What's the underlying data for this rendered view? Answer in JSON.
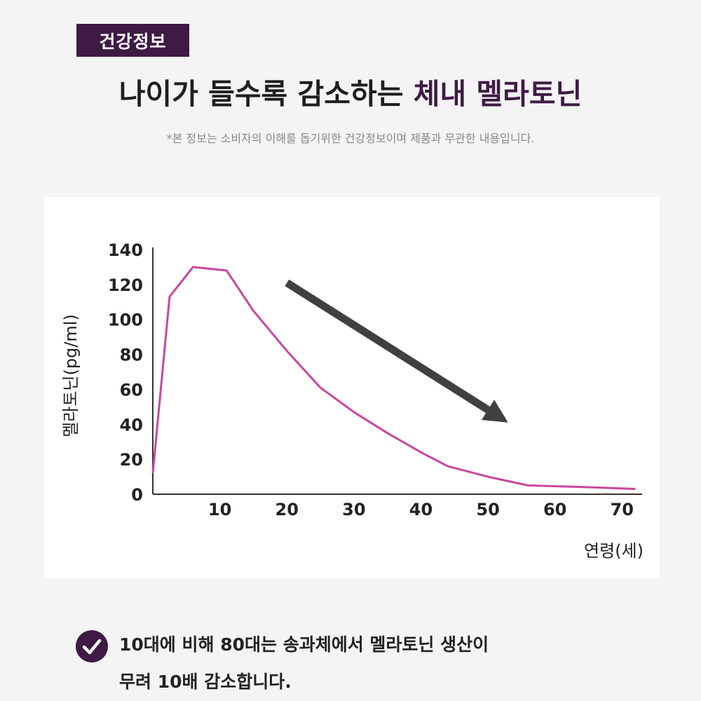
{
  "header": {
    "badge": "건강정보",
    "title_plain": "나이가 들수록 감소하는 ",
    "title_accent": "체내 멜라토닌",
    "disclaimer": "*본 정보는 소비자의 이해를 돕기위한 건강정보이며 제품과 무관한 내용입니다."
  },
  "chart_data": {
    "type": "line",
    "title": "",
    "xlabel": "연령(세)",
    "ylabel": "멜라토닌(pg/ml)",
    "xlim": [
      0,
      73
    ],
    "ylim": [
      0,
      140
    ],
    "x_ticks": [
      10,
      20,
      30,
      40,
      50,
      60,
      70
    ],
    "y_ticks": [
      0,
      20,
      40,
      60,
      80,
      100,
      120,
      140
    ],
    "grid": false,
    "series": [
      {
        "name": "",
        "color": "#c9479d",
        "points": [
          [
            0,
            12
          ],
          [
            2.5,
            113
          ],
          [
            6,
            130
          ],
          [
            11,
            128
          ],
          [
            15,
            105
          ],
          [
            20,
            82
          ],
          [
            25,
            61
          ],
          [
            30,
            47
          ],
          [
            35,
            35
          ],
          [
            40,
            24
          ],
          [
            44,
            16
          ],
          [
            50,
            10
          ],
          [
            56,
            5
          ],
          [
            65,
            4
          ],
          [
            72,
            3
          ]
        ]
      }
    ],
    "annotation": {
      "type": "downward-trend-arrow",
      "color": "#404040",
      "from": [
        20,
        121
      ],
      "to": [
        53,
        41
      ]
    }
  },
  "note": {
    "check_color": "#3f1a45",
    "line1": "10대에 비해 80대는 송과체에서 멜라토닌 생산이",
    "line2": "무려 10배 감소합니다."
  }
}
